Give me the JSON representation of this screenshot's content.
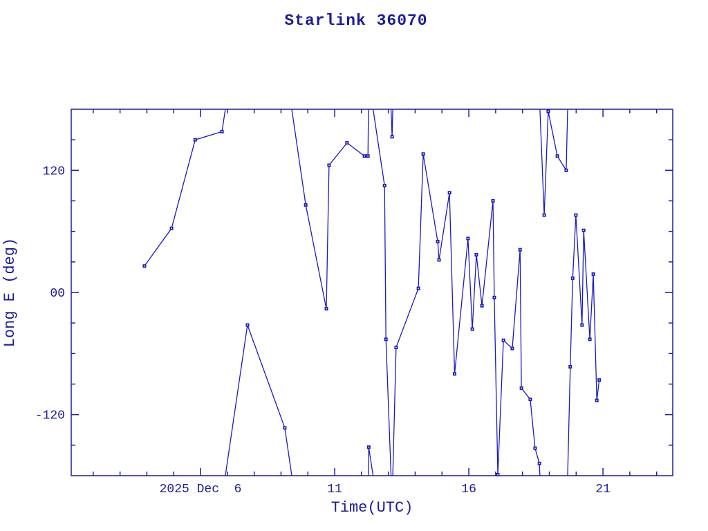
{
  "title": "Starlink 36070",
  "colors": {
    "background": "#ffffff",
    "axis": "#1c1c9c",
    "text": "#1c1c9c",
    "data": "#1a1ac0"
  },
  "chart_data": {
    "type": "line",
    "title": "Starlink 36070",
    "xlabel": "Time(UTC)",
    "ylabel": "Long E (deg)",
    "x_unit": "day of December 2025, UTC",
    "xlim": [
      1.18,
      23.6
    ],
    "ylim": [
      -180,
      180
    ],
    "grid": false,
    "legend": null,
    "marker": "square",
    "wrap_longitude": true,
    "x_major_ticks": [
      {
        "value": 6,
        "label": "2025 Dec  6"
      },
      {
        "value": 11,
        "label": "11"
      },
      {
        "value": 16,
        "label": "16"
      },
      {
        "value": 21,
        "label": "21"
      }
    ],
    "x_minor_step": 1,
    "y_major_ticks": [
      {
        "value": 120,
        "label": "120"
      },
      {
        "value": 0,
        "label": "00"
      },
      {
        "value": -120,
        "label": "-120"
      }
    ],
    "y_minor_step": 30,
    "points": [
      [
        3.91,
        26
      ],
      [
        4.92,
        63
      ],
      [
        5.8,
        150
      ],
      [
        6.8,
        158
      ],
      [
        7.75,
        -32
      ],
      [
        9.14,
        -133
      ],
      [
        9.92,
        86
      ],
      [
        10.69,
        -16
      ],
      [
        10.79,
        125
      ],
      [
        11.46,
        147
      ],
      [
        12.11,
        134
      ],
      [
        12.24,
        134
      ],
      [
        12.27,
        -152
      ],
      [
        12.86,
        105
      ],
      [
        12.91,
        -46
      ],
      [
        13.14,
        153
      ],
      [
        13.29,
        -54
      ],
      [
        14.12,
        4
      ],
      [
        14.3,
        136
      ],
      [
        14.84,
        50
      ],
      [
        14.89,
        32
      ],
      [
        15.28,
        98
      ],
      [
        15.47,
        -80
      ],
      [
        15.97,
        53
      ],
      [
        16.13,
        -36
      ],
      [
        16.28,
        37
      ],
      [
        16.49,
        -13
      ],
      [
        16.9,
        90
      ],
      [
        16.95,
        -5
      ],
      [
        17.08,
        -179
      ],
      [
        17.29,
        -47
      ],
      [
        17.62,
        -55
      ],
      [
        17.91,
        42
      ],
      [
        17.96,
        -94
      ],
      [
        18.29,
        -105
      ],
      [
        18.47,
        -153
      ],
      [
        18.63,
        -168
      ],
      [
        18.81,
        76
      ],
      [
        18.96,
        178
      ],
      [
        19.3,
        134
      ],
      [
        19.63,
        120
      ],
      [
        19.78,
        -73
      ],
      [
        19.87,
        14
      ],
      [
        19.99,
        76
      ],
      [
        20.22,
        -32
      ],
      [
        20.28,
        61
      ],
      [
        20.51,
        -46
      ],
      [
        20.64,
        18
      ],
      [
        20.77,
        -106
      ],
      [
        20.86,
        -86
      ]
    ]
  }
}
